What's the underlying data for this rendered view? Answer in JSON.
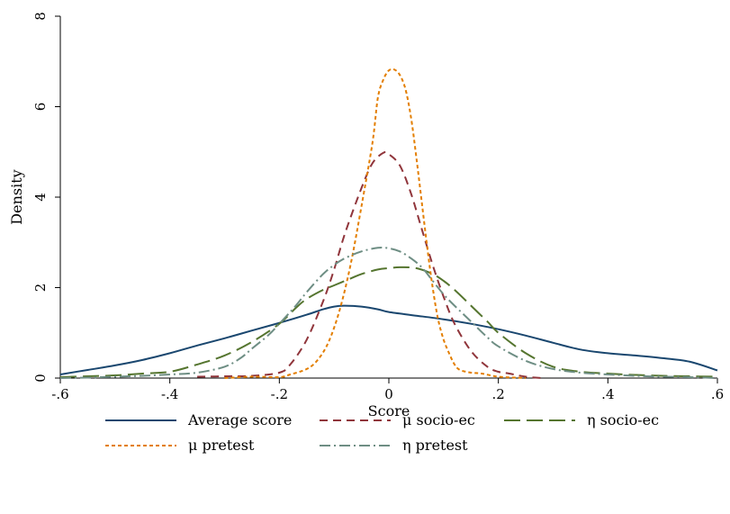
{
  "chart_data": {
    "type": "line",
    "title": "",
    "xlabel": "Score",
    "ylabel": "Density",
    "xlim": [
      -0.6,
      0.6
    ],
    "ylim": [
      0,
      8
    ],
    "xticks": [
      -0.6,
      -0.4,
      -0.2,
      0,
      0.2,
      0.4,
      0.6
    ],
    "xtick_labels": [
      "-.6",
      "-.4",
      "-.2",
      "0",
      ".2",
      ".4",
      ".6"
    ],
    "yticks": [
      0,
      2,
      4,
      6,
      8
    ],
    "ytick_labels": [
      "0",
      "2",
      "4",
      "6",
      "8"
    ],
    "grid": false,
    "legend_position": "bottom",
    "series": [
      {
        "name": "Average score",
        "color": "#1a476f",
        "dash": "solid",
        "points": [
          [
            -0.6,
            0.08
          ],
          [
            -0.55,
            0.18
          ],
          [
            -0.5,
            0.28
          ],
          [
            -0.45,
            0.4
          ],
          [
            -0.4,
            0.55
          ],
          [
            -0.35,
            0.72
          ],
          [
            -0.3,
            0.88
          ],
          [
            -0.25,
            1.05
          ],
          [
            -0.2,
            1.22
          ],
          [
            -0.15,
            1.4
          ],
          [
            -0.12,
            1.52
          ],
          [
            -0.1,
            1.58
          ],
          [
            -0.08,
            1.6
          ],
          [
            -0.05,
            1.58
          ],
          [
            -0.02,
            1.52
          ],
          [
            0,
            1.46
          ],
          [
            0.05,
            1.38
          ],
          [
            0.1,
            1.3
          ],
          [
            0.15,
            1.2
          ],
          [
            0.2,
            1.08
          ],
          [
            0.25,
            0.94
          ],
          [
            0.3,
            0.78
          ],
          [
            0.35,
            0.63
          ],
          [
            0.4,
            0.55
          ],
          [
            0.45,
            0.5
          ],
          [
            0.5,
            0.44
          ],
          [
            0.55,
            0.36
          ],
          [
            0.6,
            0.17
          ]
        ]
      },
      {
        "name": "μ socio-ec",
        "color": "#90353b",
        "dash": "9,6",
        "points": [
          [
            -0.35,
            0.03
          ],
          [
            -0.3,
            0.04
          ],
          [
            -0.25,
            0.05
          ],
          [
            -0.2,
            0.12
          ],
          [
            -0.18,
            0.3
          ],
          [
            -0.15,
            0.85
          ],
          [
            -0.12,
            1.7
          ],
          [
            -0.1,
            2.4
          ],
          [
            -0.08,
            3.2
          ],
          [
            -0.05,
            4.2
          ],
          [
            -0.03,
            4.75
          ],
          [
            -0.01,
            4.98
          ],
          [
            0,
            4.95
          ],
          [
            0.02,
            4.7
          ],
          [
            0.04,
            4.1
          ],
          [
            0.06,
            3.3
          ],
          [
            0.08,
            2.5
          ],
          [
            0.1,
            1.8
          ],
          [
            0.12,
            1.2
          ],
          [
            0.15,
            0.6
          ],
          [
            0.18,
            0.25
          ],
          [
            0.2,
            0.14
          ],
          [
            0.22,
            0.1
          ],
          [
            0.25,
            0.03
          ],
          [
            0.28,
            0.0
          ]
        ]
      },
      {
        "name": "η socio-ec",
        "color": "#55752f",
        "dash": "18,7",
        "points": [
          [
            -0.6,
            0.02
          ],
          [
            -0.55,
            0.04
          ],
          [
            -0.5,
            0.06
          ],
          [
            -0.45,
            0.1
          ],
          [
            -0.4,
            0.14
          ],
          [
            -0.35,
            0.3
          ],
          [
            -0.3,
            0.5
          ],
          [
            -0.25,
            0.8
          ],
          [
            -0.2,
            1.2
          ],
          [
            -0.17,
            1.55
          ],
          [
            -0.15,
            1.75
          ],
          [
            -0.12,
            1.95
          ],
          [
            -0.1,
            2.05
          ],
          [
            -0.07,
            2.2
          ],
          [
            -0.05,
            2.3
          ],
          [
            -0.02,
            2.4
          ],
          [
            0,
            2.43
          ],
          [
            0.02,
            2.45
          ],
          [
            0.05,
            2.43
          ],
          [
            0.08,
            2.3
          ],
          [
            0.1,
            2.15
          ],
          [
            0.12,
            1.95
          ],
          [
            0.15,
            1.6
          ],
          [
            0.18,
            1.25
          ],
          [
            0.2,
            1.0
          ],
          [
            0.25,
            0.55
          ],
          [
            0.3,
            0.25
          ],
          [
            0.35,
            0.14
          ],
          [
            0.4,
            0.1
          ],
          [
            0.45,
            0.07
          ],
          [
            0.5,
            0.05
          ],
          [
            0.55,
            0.04
          ],
          [
            0.6,
            0.03
          ]
        ]
      },
      {
        "name": "μ pretest",
        "color": "#e37e00",
        "dash": "4,3",
        "points": [
          [
            -0.3,
            0.0
          ],
          [
            -0.25,
            0.03
          ],
          [
            -0.2,
            0.02
          ],
          [
            -0.18,
            0.08
          ],
          [
            -0.15,
            0.2
          ],
          [
            -0.13,
            0.4
          ],
          [
            -0.11,
            0.8
          ],
          [
            -0.09,
            1.5
          ],
          [
            -0.07,
            2.5
          ],
          [
            -0.05,
            3.8
          ],
          [
            -0.03,
            5.2
          ],
          [
            -0.02,
            6.2
          ],
          [
            -0.01,
            6.6
          ],
          [
            0,
            6.8
          ],
          [
            0.01,
            6.82
          ],
          [
            0.02,
            6.7
          ],
          [
            0.03,
            6.4
          ],
          [
            0.04,
            5.8
          ],
          [
            0.05,
            4.9
          ],
          [
            0.06,
            3.9
          ],
          [
            0.07,
            2.9
          ],
          [
            0.08,
            2.0
          ],
          [
            0.09,
            1.3
          ],
          [
            0.1,
            0.85
          ],
          [
            0.11,
            0.55
          ],
          [
            0.12,
            0.3
          ],
          [
            0.13,
            0.18
          ],
          [
            0.15,
            0.12
          ],
          [
            0.17,
            0.1
          ],
          [
            0.2,
            0.03
          ],
          [
            0.25,
            0.0
          ]
        ]
      },
      {
        "name": "η pretest",
        "color": "#6e8e84",
        "dash": "12,4,2,4",
        "points": [
          [
            -0.6,
            0.0
          ],
          [
            -0.55,
            0.01
          ],
          [
            -0.5,
            0.03
          ],
          [
            -0.45,
            0.05
          ],
          [
            -0.4,
            0.08
          ],
          [
            -0.35,
            0.12
          ],
          [
            -0.3,
            0.25
          ],
          [
            -0.27,
            0.45
          ],
          [
            -0.25,
            0.65
          ],
          [
            -0.22,
            0.95
          ],
          [
            -0.2,
            1.2
          ],
          [
            -0.17,
            1.6
          ],
          [
            -0.15,
            1.9
          ],
          [
            -0.12,
            2.3
          ],
          [
            -0.1,
            2.5
          ],
          [
            -0.08,
            2.65
          ],
          [
            -0.05,
            2.8
          ],
          [
            -0.02,
            2.88
          ],
          [
            0,
            2.87
          ],
          [
            0.02,
            2.8
          ],
          [
            0.04,
            2.65
          ],
          [
            0.06,
            2.45
          ],
          [
            0.08,
            2.15
          ],
          [
            0.1,
            1.85
          ],
          [
            0.12,
            1.6
          ],
          [
            0.15,
            1.25
          ],
          [
            0.18,
            0.9
          ],
          [
            0.2,
            0.7
          ],
          [
            0.25,
            0.38
          ],
          [
            0.3,
            0.2
          ],
          [
            0.35,
            0.12
          ],
          [
            0.4,
            0.08
          ],
          [
            0.45,
            0.05
          ],
          [
            0.5,
            0.03
          ],
          [
            0.55,
            0.02
          ],
          [
            0.6,
            0.0
          ]
        ]
      }
    ]
  }
}
